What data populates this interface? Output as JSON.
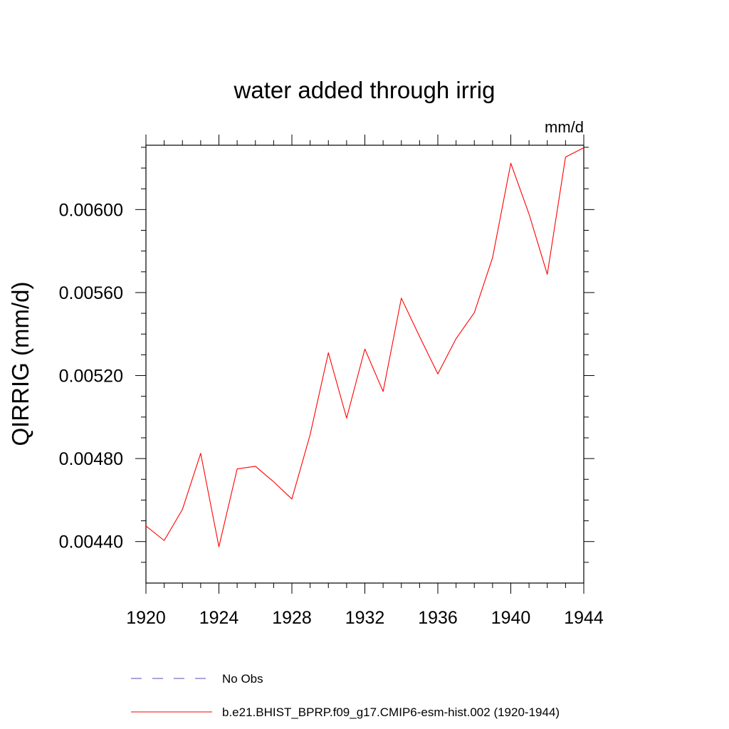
{
  "chart_data": {
    "type": "line",
    "title": "water added through irrig",
    "units_label": "mm/d",
    "xlabel": "",
    "ylabel": "QIRRIG  (mm/d)",
    "xlim": [
      1920,
      1944
    ],
    "ylim": [
      0.0042,
      0.00631
    ],
    "x_ticks": [
      1920,
      1924,
      1928,
      1932,
      1936,
      1940,
      1944
    ],
    "x_tick_labels": [
      "1920",
      "1924",
      "1928",
      "1932",
      "1936",
      "1940",
      "1944"
    ],
    "y_ticks": [
      0.0044,
      0.0048,
      0.0052,
      0.0056,
      0.006
    ],
    "y_tick_labels": [
      "0.00440",
      "0.00480",
      "0.00520",
      "0.00560",
      "0.00600"
    ],
    "series": [
      {
        "name": "b.e21.BHIST_BPRP.f09_g17.CMIP6-esm-hist.002 (1920-1944)",
        "color": "#ff0000",
        "style": "solid",
        "x": [
          1920,
          1921,
          1922,
          1923,
          1924,
          1925,
          1926,
          1927,
          1928,
          1929,
          1930,
          1931,
          1932,
          1933,
          1934,
          1935,
          1936,
          1937,
          1938,
          1939,
          1940,
          1941,
          1942,
          1943,
          1944
        ],
        "values": [
          0.004475,
          0.004405,
          0.004555,
          0.004825,
          0.004375,
          0.00475,
          0.004763,
          0.004688,
          0.004605,
          0.004915,
          0.00531,
          0.004995,
          0.005328,
          0.005123,
          0.005573,
          0.005388,
          0.005208,
          0.005378,
          0.005503,
          0.005768,
          0.006223,
          0.005978,
          0.005688,
          0.006253,
          0.006298
        ]
      }
    ],
    "legend": [
      {
        "label": "No Obs",
        "color": "#5b4bb0",
        "style": "dashed"
      },
      {
        "label": "b.e21.BHIST_BPRP.f09_g17.CMIP6-esm-hist.002 (1920-1944)",
        "color": "#ff0000",
        "style": "solid"
      }
    ],
    "legend_position": "bottom",
    "grid": false
  }
}
